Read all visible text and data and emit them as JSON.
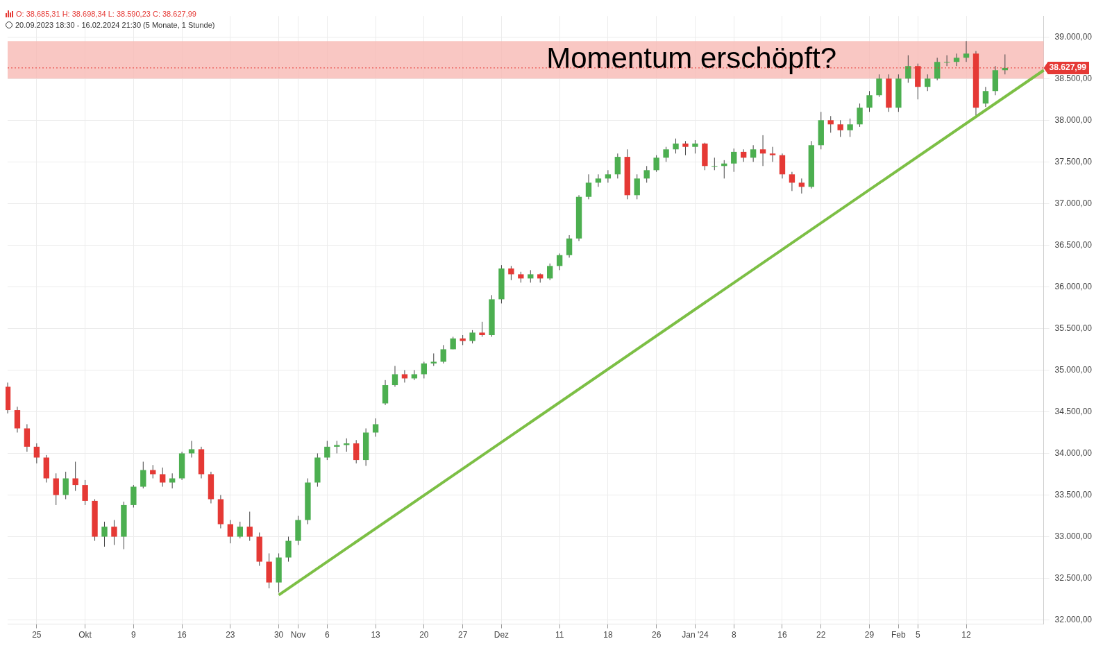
{
  "chart_data": {
    "type": "candlestick",
    "title": "O: 38.685,31  H: 38.698,34  L: 38.590,23  C: 38.627,99",
    "subtitle": "20.09.2023 18:30 - 16.02.2024 21:30   (5 Monate, 1 Stunde)",
    "categories": [
      null,
      null,
      null,
      "25",
      null,
      null,
      null,
      null,
      "Okt",
      null,
      null,
      null,
      null,
      "9",
      null,
      null,
      null,
      null,
      "16",
      null,
      null,
      null,
      null,
      "23",
      null,
      null,
      null,
      null,
      "30",
      null,
      "Nov",
      null,
      null,
      "6",
      null,
      null,
      null,
      null,
      "13",
      null,
      null,
      null,
      null,
      "20",
      null,
      null,
      null,
      "27",
      null,
      null,
      null,
      "Dez",
      null,
      null,
      null,
      null,
      null,
      "11",
      null,
      null,
      null,
      null,
      "18",
      null,
      null,
      null,
      null,
      "26",
      null,
      null,
      null,
      "Jan '24",
      null,
      null,
      null,
      "8",
      null,
      null,
      null,
      null,
      "16",
      null,
      null,
      null,
      "22",
      null,
      null,
      null,
      null,
      "29",
      null,
      null,
      "Feb",
      null,
      "5",
      null,
      null,
      null,
      null,
      "12",
      null,
      null,
      null,
      null,
      null,
      null,
      null,
      null
    ],
    "ohlc": [
      [
        34800,
        34850,
        34480,
        34520
      ],
      [
        34520,
        34560,
        34250,
        34300
      ],
      [
        34300,
        34350,
        34020,
        34080
      ],
      [
        34080,
        34120,
        33880,
        33950
      ],
      [
        33950,
        33980,
        33650,
        33700
      ],
      [
        33700,
        33760,
        33380,
        33500
      ],
      [
        33500,
        33780,
        33450,
        33700
      ],
      [
        33700,
        33900,
        33550,
        33620
      ],
      [
        33620,
        33680,
        33380,
        33430
      ],
      [
        33430,
        33450,
        32950,
        33000
      ],
      [
        33000,
        33180,
        32880,
        33120
      ],
      [
        33120,
        33200,
        32900,
        33000
      ],
      [
        33000,
        33420,
        32850,
        33380
      ],
      [
        33380,
        33620,
        33350,
        33600
      ],
      [
        33600,
        33900,
        33580,
        33800
      ],
      [
        33800,
        33860,
        33700,
        33750
      ],
      [
        33750,
        33830,
        33600,
        33650
      ],
      [
        33650,
        33760,
        33580,
        33700
      ],
      [
        33700,
        34020,
        33680,
        34000
      ],
      [
        34000,
        34150,
        33950,
        34050
      ],
      [
        34050,
        34080,
        33700,
        33750
      ],
      [
        33750,
        33780,
        33400,
        33450
      ],
      [
        33450,
        33500,
        33100,
        33150
      ],
      [
        33150,
        33200,
        32920,
        33000
      ],
      [
        33000,
        33180,
        32980,
        33120
      ],
      [
        33120,
        33300,
        32950,
        33000
      ],
      [
        33000,
        33050,
        32650,
        32700
      ],
      [
        32700,
        32800,
        32380,
        32450
      ],
      [
        32450,
        32800,
        32330,
        32750
      ],
      [
        32750,
        33000,
        32700,
        32950
      ],
      [
        32950,
        33250,
        32900,
        33200
      ],
      [
        33200,
        33700,
        33150,
        33650
      ],
      [
        33650,
        34000,
        33600,
        33950
      ],
      [
        33950,
        34150,
        33920,
        34080
      ],
      [
        34080,
        34150,
        34000,
        34100
      ],
      [
        34100,
        34180,
        34020,
        34120
      ],
      [
        34120,
        34160,
        33880,
        33920
      ],
      [
        33920,
        34300,
        33850,
        34250
      ],
      [
        34250,
        34420,
        34200,
        34350
      ],
      [
        34600,
        34880,
        34580,
        34820
      ],
      [
        34820,
        35050,
        34800,
        34950
      ],
      [
        34950,
        35000,
        34850,
        34900
      ],
      [
        34900,
        35000,
        34880,
        34950
      ],
      [
        34950,
        35100,
        34900,
        35080
      ],
      [
        35080,
        35200,
        35050,
        35100
      ],
      [
        35100,
        35300,
        35080,
        35250
      ],
      [
        35250,
        35400,
        35250,
        35380
      ],
      [
        35380,
        35420,
        35300,
        35350
      ],
      [
        35350,
        35480,
        35320,
        35450
      ],
      [
        35450,
        35580,
        35400,
        35420
      ],
      [
        35420,
        35900,
        35400,
        35850
      ],
      [
        35850,
        36260,
        35800,
        36220
      ],
      [
        36220,
        36250,
        36080,
        36150
      ],
      [
        36150,
        36180,
        36050,
        36100
      ],
      [
        36100,
        36200,
        36050,
        36150
      ],
      [
        36150,
        36160,
        36050,
        36100
      ],
      [
        36100,
        36280,
        36080,
        36250
      ],
      [
        36250,
        36400,
        36200,
        36380
      ],
      [
        36380,
        36620,
        36350,
        36580
      ],
      [
        36580,
        37100,
        36550,
        37080
      ],
      [
        37080,
        37350,
        37050,
        37250
      ],
      [
        37250,
        37350,
        37200,
        37300
      ],
      [
        37300,
        37400,
        37250,
        37350
      ],
      [
        37350,
        37600,
        37300,
        37560
      ],
      [
        37560,
        37650,
        37050,
        37100
      ],
      [
        37100,
        37350,
        37050,
        37300
      ],
      [
        37300,
        37450,
        37250,
        37400
      ],
      [
        37400,
        37580,
        37380,
        37550
      ],
      [
        37550,
        37680,
        37500,
        37650
      ],
      [
        37650,
        37780,
        37600,
        37720
      ],
      [
        37720,
        37750,
        37580,
        37680
      ],
      [
        37680,
        37760,
        37600,
        37720
      ],
      [
        37720,
        37730,
        37400,
        37450
      ],
      [
        37450,
        37550,
        37400,
        37450
      ],
      [
        37450,
        37520,
        37300,
        37480
      ],
      [
        37480,
        37660,
        37380,
        37620
      ],
      [
        37620,
        37650,
        37500,
        37550
      ],
      [
        37550,
        37700,
        37500,
        37650
      ],
      [
        37650,
        37820,
        37450,
        37600
      ],
      [
        37600,
        37680,
        37500,
        37580
      ],
      [
        37580,
        37600,
        37300,
        37350
      ],
      [
        37350,
        37380,
        37150,
        37250
      ],
      [
        37250,
        37300,
        37120,
        37200
      ],
      [
        37200,
        37750,
        37180,
        37700
      ],
      [
        37700,
        38100,
        37650,
        38000
      ],
      [
        38000,
        38050,
        37850,
        37950
      ],
      [
        37950,
        38000,
        37800,
        37880
      ],
      [
        37880,
        38020,
        37800,
        37950
      ],
      [
        37950,
        38200,
        37920,
        38150
      ],
      [
        38150,
        38350,
        38100,
        38300
      ],
      [
        38300,
        38550,
        38280,
        38500
      ],
      [
        38500,
        38550,
        38100,
        38150
      ],
      [
        38150,
        38550,
        38100,
        38500
      ],
      [
        38500,
        38780,
        38450,
        38650
      ],
      [
        38650,
        38680,
        38250,
        38400
      ],
      [
        38400,
        38550,
        38350,
        38500
      ],
      [
        38500,
        38750,
        38480,
        38700
      ],
      [
        38700,
        38780,
        38650,
        38700
      ],
      [
        38700,
        38800,
        38650,
        38750
      ],
      [
        38750,
        38950,
        38700,
        38800
      ],
      [
        38800,
        38830,
        38060,
        38150
      ],
      [
        38200,
        38400,
        38160,
        38350
      ],
      [
        38350,
        38650,
        38300,
        38600
      ],
      [
        38600,
        38790,
        38550,
        38627.99
      ],
      null,
      null,
      null,
      null
    ],
    "colors": [
      "#e53935",
      "#e53935",
      "#e53935",
      "#e53935",
      "#e53935",
      "#e53935",
      "#4caf50",
      "#e53935",
      "#e53935",
      "#e53935",
      "#4caf50",
      "#e53935",
      "#4caf50",
      "#4caf50",
      "#4caf50",
      "#e53935",
      "#e53935",
      "#4caf50",
      "#4caf50",
      "#4caf50",
      "#e53935",
      "#e53935",
      "#e53935",
      "#e53935",
      "#4caf50",
      "#e53935",
      "#e53935",
      "#e53935",
      "#4caf50",
      "#4caf50",
      "#4caf50",
      "#4caf50",
      "#4caf50",
      "#4caf50",
      "#4caf50",
      "#4caf50",
      "#e53935",
      "#4caf50",
      "#4caf50",
      "#4caf50",
      "#4caf50",
      "#e53935",
      "#4caf50",
      "#4caf50",
      "#4caf50",
      "#4caf50",
      "#4caf50",
      "#e53935",
      "#4caf50",
      "#e53935",
      "#4caf50",
      "#4caf50",
      "#e53935",
      "#e53935",
      "#4caf50",
      "#e53935",
      "#4caf50",
      "#4caf50",
      "#4caf50",
      "#4caf50",
      "#4caf50",
      "#4caf50",
      "#4caf50",
      "#4caf50",
      "#e53935",
      "#4caf50",
      "#4caf50",
      "#4caf50",
      "#4caf50",
      "#4caf50",
      "#e53935",
      "#4caf50",
      "#e53935",
      "#4caf50",
      "#4caf50",
      "#4caf50",
      "#e53935",
      "#4caf50",
      "#e53935",
      "#e53935",
      "#e53935",
      "#e53935",
      "#e53935",
      "#4caf50",
      "#4caf50",
      "#e53935",
      "#e53935",
      "#4caf50",
      "#4caf50",
      "#4caf50",
      "#4caf50",
      "#e53935",
      "#4caf50",
      "#4caf50",
      "#e53935",
      "#4caf50",
      "#4caf50",
      "#4caf50",
      "#4caf50",
      "#4caf50",
      "#e53935",
      "#4caf50",
      "#4caf50",
      "#4caf50",
      null,
      null,
      null,
      null
    ],
    "series": [
      {
        "type": "line",
        "color": "#7cbf45",
        "values": [
          null,
          null,
          null,
          null,
          null,
          null,
          null,
          null,
          null,
          null,
          null,
          null,
          null,
          null,
          null,
          null,
          null,
          null,
          null,
          null,
          null,
          null,
          null,
          null,
          null,
          null,
          null,
          null,
          32300,
          null,
          null,
          null,
          null,
          null,
          null,
          null,
          null,
          null,
          null,
          null,
          null,
          null,
          null,
          null,
          null,
          null,
          null,
          null,
          null,
          null,
          null,
          null,
          null,
          null,
          null,
          null,
          null,
          null,
          null,
          null,
          null,
          null,
          null,
          null,
          null,
          null,
          null,
          null,
          null,
          null,
          null,
          null,
          null,
          null,
          null,
          null,
          null,
          null,
          null,
          null,
          null,
          null,
          null,
          null,
          null,
          null,
          null,
          null,
          null,
          null,
          null,
          null,
          null,
          null,
          null,
          null,
          null,
          null,
          null,
          null,
          null,
          null,
          null,
          null,
          null,
          null,
          null,
          38600
        ]
      }
    ],
    "ylim": [
      31950,
      39250
    ],
    "yticks": [
      {
        "value": 32000,
        "label": "32.000,00"
      },
      {
        "value": 32500,
        "label": "32.500,00"
      },
      {
        "value": 33000,
        "label": "33.000,00"
      },
      {
        "value": 33500,
        "label": "33.500,00"
      },
      {
        "value": 34000,
        "label": "34.000,00"
      },
      {
        "value": 34500,
        "label": "34.500,00"
      },
      {
        "value": 35000,
        "label": "35.000,00"
      },
      {
        "value": 35500,
        "label": "35.500,00"
      },
      {
        "value": 36000,
        "label": "36.000,00"
      },
      {
        "value": 36500,
        "label": "36.500,00"
      },
      {
        "value": 37000,
        "label": "37.000,00"
      },
      {
        "value": 37500,
        "label": "37.500,00"
      },
      {
        "value": 38000,
        "label": "38.000,00"
      },
      {
        "value": 38500,
        "label": "38.500,00"
      },
      {
        "value": 39000,
        "label": "39.000,00"
      }
    ],
    "grid": true,
    "bands": [
      {
        "axis": "y",
        "from": 38500,
        "to": 38950,
        "label": "Momentum erschöpft?",
        "color": "#f8b9b4"
      }
    ],
    "ref_lines": [
      {
        "axis": "y",
        "value": 38627.99,
        "label": "38.627,99",
        "color": "#e53935"
      }
    ]
  }
}
